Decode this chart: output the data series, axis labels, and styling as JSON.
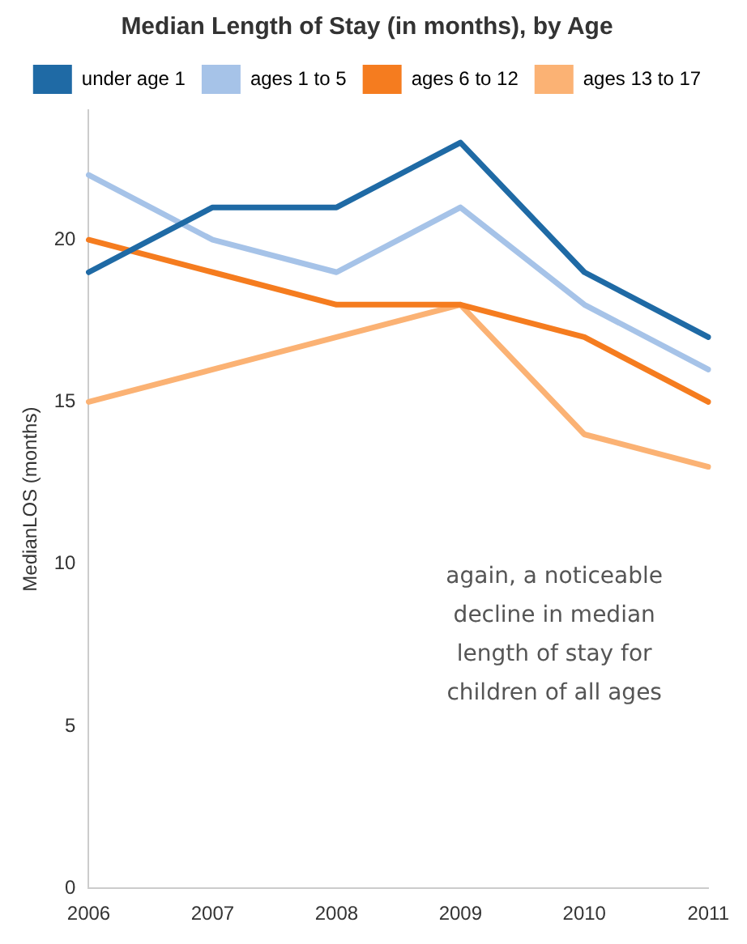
{
  "chart_data": {
    "type": "line",
    "title": "Median Length of Stay (in months), by Age",
    "ylabel": "MedianLOS (months)",
    "categories": [
      "2006",
      "2007",
      "2008",
      "2009",
      "2010",
      "2011"
    ],
    "series": [
      {
        "name": "under age 1",
        "color": "#1f6aa5",
        "values": [
          19,
          21,
          21,
          23,
          19,
          17
        ]
      },
      {
        "name": "ages 1 to 5",
        "color": "#a6c3e8",
        "values": [
          22,
          20,
          19,
          21,
          18,
          16
        ]
      },
      {
        "name": "ages 6 to 12",
        "color": "#f57c1f",
        "values": [
          20,
          19,
          18,
          18,
          17,
          15
        ]
      },
      {
        "name": "ages 13 to 17",
        "color": "#fbb274",
        "values": [
          15,
          16,
          17,
          18,
          14,
          13
        ]
      }
    ],
    "ylim": [
      0,
      24
    ],
    "yticks": [
      0,
      5,
      10,
      15,
      20
    ],
    "grid": false,
    "legend": "top",
    "marker": "none",
    "line_style": "solid",
    "annotations": [
      "again, a noticeable decline in median length of stay for children of all ages"
    ]
  }
}
